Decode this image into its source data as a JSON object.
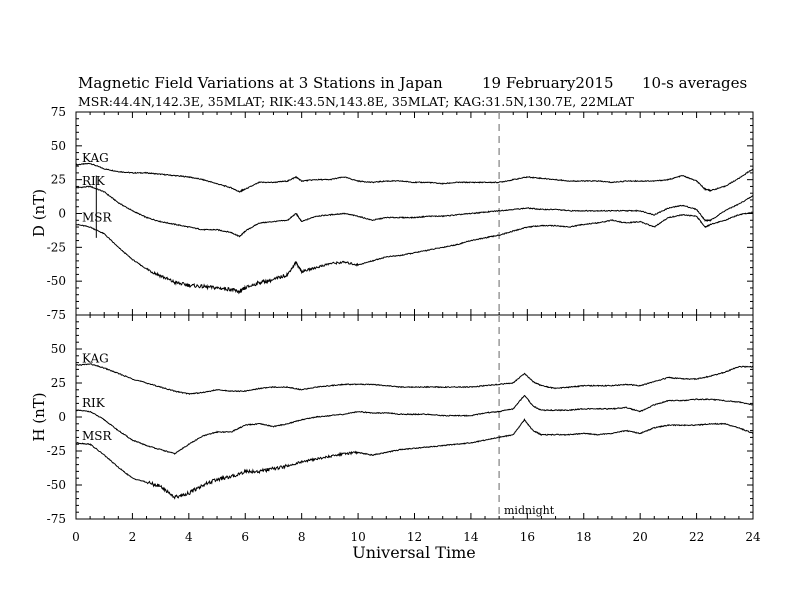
{
  "header": {
    "title": "Magnetic Field Variations at 3 Stations in Japan",
    "date": "19 February2015",
    "averaging": "10-s averages",
    "stations": "MSR:44.4N,142.3E, 35MLAT;   RIK:43.5N,143.8E, 35MLAT;   KAG:31.5N,130.7E, 22MLAT"
  },
  "chart_data": [
    {
      "type": "line",
      "panel": "top",
      "ylabel": "D (nT)",
      "ylim": [
        -75,
        75
      ],
      "yticks": [
        "75",
        "50",
        "25",
        "0",
        "-25",
        "-50",
        "-75"
      ],
      "xlim": [
        0,
        24
      ],
      "x": [
        0,
        0.5,
        1,
        1.5,
        2,
        2.5,
        3,
        3.5,
        4,
        4.5,
        5,
        5.5,
        5.8,
        6,
        6.5,
        7,
        7.5,
        7.8,
        8,
        8.5,
        9,
        9.5,
        10,
        10.5,
        11,
        11.5,
        12,
        12.5,
        13,
        13.5,
        14,
        14.5,
        15,
        15.5,
        16,
        16.5,
        17,
        17.5,
        18,
        18.5,
        19,
        19.5,
        20,
        20.5,
        21,
        21.5,
        22,
        22.3,
        22.5,
        23,
        23.5,
        24
      ],
      "series": [
        {
          "name": "KAG",
          "values": [
            36,
            37,
            33,
            31,
            30,
            30,
            29,
            28,
            27,
            25,
            22,
            19,
            16,
            18,
            23,
            23,
            24,
            27,
            24,
            25,
            25,
            27,
            24,
            23,
            24,
            24,
            23,
            23,
            22,
            23,
            23,
            23,
            23,
            25,
            27,
            26,
            25,
            24,
            24,
            24,
            23,
            24,
            24,
            24,
            25,
            28,
            24,
            18,
            17,
            20,
            26,
            33
          ]
        },
        {
          "name": "RIK",
          "values": [
            19,
            20,
            16,
            8,
            2,
            -3,
            -6,
            -8,
            -10,
            -12,
            -12,
            -14,
            -17,
            -13,
            -7,
            -6,
            -5,
            0,
            -6,
            -2,
            -1,
            0,
            -2,
            -5,
            -3,
            -3,
            -3,
            -2,
            -2,
            -1,
            0,
            1,
            2,
            3,
            4,
            3,
            3,
            2,
            2,
            2,
            2,
            2,
            2,
            -1,
            4,
            6,
            3,
            -5,
            -5,
            2,
            7,
            13
          ]
        },
        {
          "name": "MSR",
          "values": [
            -8,
            -10,
            -15,
            -25,
            -34,
            -41,
            -46,
            -51,
            -53,
            -54,
            -55,
            -56,
            -58,
            -55,
            -51,
            -49,
            -45,
            -36,
            -43,
            -40,
            -37,
            -36,
            -38,
            -35,
            -32,
            -31,
            -29,
            -27,
            -25,
            -23,
            -20,
            -18,
            -16,
            -13,
            -10,
            -9,
            -9,
            -10,
            -8,
            -7,
            -5,
            -7,
            -6,
            -10,
            -3,
            -1,
            -2,
            -10,
            -8,
            -5,
            -1,
            1
          ]
        }
      ]
    },
    {
      "type": "line",
      "panel": "bottom",
      "ylabel": "H (nT)",
      "xlabel": "Universal Time",
      "ylim": [
        -75,
        75
      ],
      "yticks": [
        "50",
        "25",
        "0",
        "-25",
        "-50",
        "-75"
      ],
      "xlim": [
        0,
        24
      ],
      "xticks": [
        "0",
        "2",
        "4",
        "6",
        "8",
        "10",
        "12",
        "14",
        "16",
        "18",
        "20",
        "22",
        "24"
      ],
      "x": [
        0,
        0.5,
        1,
        1.5,
        2,
        2.5,
        3,
        3.5,
        4,
        4.5,
        5,
        5.5,
        6,
        6.5,
        7,
        7.5,
        8,
        8.5,
        9,
        9.5,
        10,
        10.5,
        11,
        11.5,
        12,
        12.5,
        13,
        13.5,
        14,
        14.5,
        15,
        15.5,
        15.9,
        16.2,
        16.5,
        17,
        17.5,
        18,
        18.5,
        19,
        19.5,
        20,
        20.5,
        21,
        21.5,
        22,
        22.5,
        23,
        23.5,
        24
      ],
      "series": [
        {
          "name": "KAG",
          "values": [
            38,
            39,
            36,
            32,
            28,
            25,
            22,
            19,
            17,
            18,
            20,
            19,
            19,
            21,
            22,
            22,
            20,
            22,
            23,
            24,
            24,
            24,
            23,
            22,
            22,
            22,
            22,
            22,
            22,
            23,
            24,
            25,
            32,
            26,
            23,
            21,
            22,
            23,
            23,
            23,
            24,
            23,
            26,
            29,
            28,
            28,
            30,
            33,
            37,
            37
          ]
        },
        {
          "name": "RIK",
          "values": [
            5,
            4,
            -2,
            -10,
            -17,
            -21,
            -24,
            -27,
            -20,
            -14,
            -11,
            -11,
            -6,
            -5,
            -7,
            -5,
            -2,
            0,
            1,
            2,
            4,
            3,
            3,
            2,
            2,
            2,
            1,
            1,
            1,
            3,
            4,
            6,
            16,
            8,
            5,
            5,
            5,
            6,
            6,
            6,
            7,
            4,
            9,
            12,
            12,
            13,
            13,
            12,
            11,
            9
          ]
        },
        {
          "name": "MSR",
          "values": [
            -19,
            -20,
            -28,
            -37,
            -45,
            -48,
            -51,
            -59,
            -56,
            -50,
            -46,
            -44,
            -40,
            -40,
            -38,
            -36,
            -33,
            -31,
            -29,
            -27,
            -26,
            -28,
            -26,
            -24,
            -23,
            -22,
            -21,
            -20,
            -19,
            -17,
            -15,
            -13,
            -2,
            -10,
            -13,
            -13,
            -13,
            -12,
            -13,
            -12,
            -10,
            -12,
            -8,
            -6,
            -6,
            -6,
            -5,
            -5,
            -8,
            -12
          ]
        }
      ]
    }
  ],
  "annotations": {
    "midnight_label": "midnight",
    "midnight_ut": 15
  }
}
